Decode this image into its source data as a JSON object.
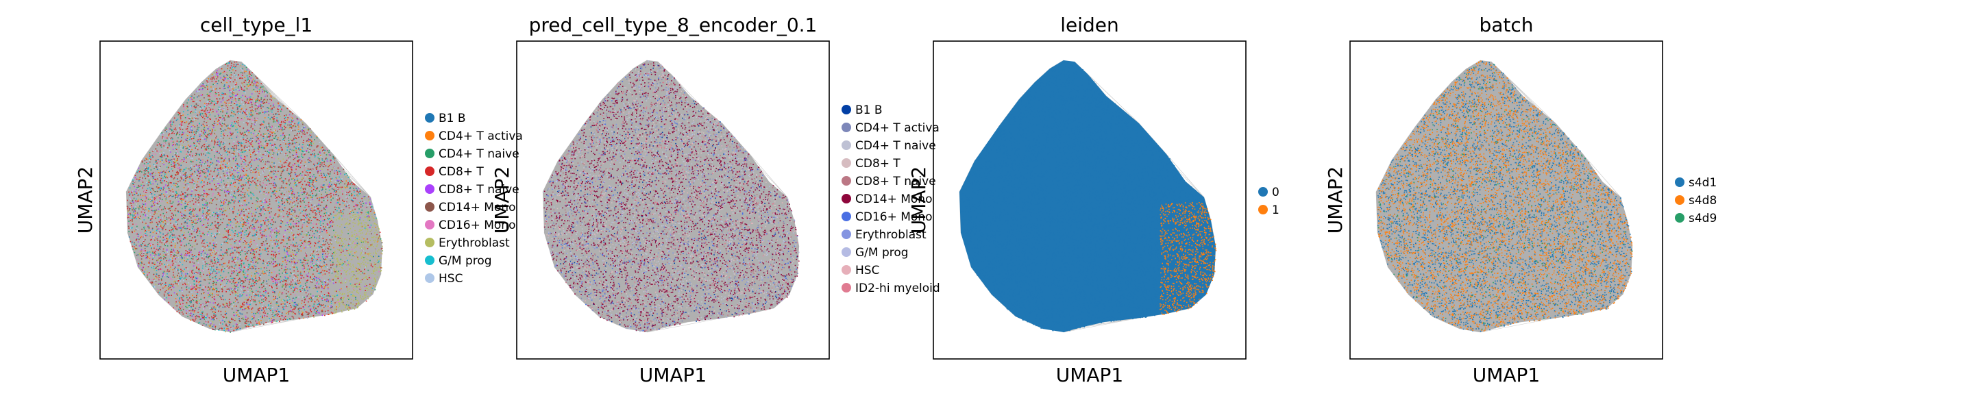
{
  "chart_data": [
    {
      "type": "scatter",
      "title": "cell_type_l1",
      "xlabel": "UMAP1",
      "ylabel": "UMAP2",
      "grid": false,
      "legend_position": "right",
      "series": [
        {
          "name": "B1 B",
          "color": "#1f77b4",
          "fraction": 0.05
        },
        {
          "name": "CD4+ T activa",
          "color": "#ff7f0e",
          "fraction": 0.06
        },
        {
          "name": "CD4+ T naive",
          "color": "#279e68",
          "fraction": 0.1
        },
        {
          "name": "CD8+ T",
          "color": "#d62728",
          "fraction": 0.3
        },
        {
          "name": "CD8+ T naive",
          "color": "#aa40fc",
          "fraction": 0.06
        },
        {
          "name": "CD14+ Mono",
          "color": "#8c564b",
          "fraction": 0.1
        },
        {
          "name": "CD16+ Mono",
          "color": "#e377c2",
          "fraction": 0.07
        },
        {
          "name": "Erythroblast",
          "color": "#b5bd61",
          "fraction": 0.08
        },
        {
          "name": "G/M prog",
          "color": "#17becf",
          "fraction": 0.09
        },
        {
          "name": "HSC",
          "color": "#aec7e8",
          "fraction": 0.09
        }
      ]
    },
    {
      "type": "scatter",
      "title": "pred_cell_type_8_encoder_0.1",
      "xlabel": "UMAP1",
      "ylabel": "UMAP2",
      "grid": false,
      "legend_position": "right",
      "series": [
        {
          "name": "B1 B",
          "color": "#023fa5",
          "fraction": 0.03
        },
        {
          "name": "CD4+ T activa",
          "color": "#7d87b9",
          "fraction": 0.06
        },
        {
          "name": "CD4+ T naive",
          "color": "#bec1d4",
          "fraction": 0.12
        },
        {
          "name": "CD8+ T",
          "color": "#d6bcc0",
          "fraction": 0.1
        },
        {
          "name": "CD8+ T naive",
          "color": "#bb7784",
          "fraction": 0.08
        },
        {
          "name": "CD14+ Mono",
          "color": "#8e063b",
          "fraction": 0.35
        },
        {
          "name": "CD16+ Mono",
          "color": "#4a6fe3",
          "fraction": 0.05
        },
        {
          "name": "Erythroblast",
          "color": "#8595e1",
          "fraction": 0.06
        },
        {
          "name": "G/M prog",
          "color": "#b5bbe3",
          "fraction": 0.07
        },
        {
          "name": "HSC",
          "color": "#e6afb9",
          "fraction": 0.04
        },
        {
          "name": "ID2-hi myeloid",
          "color": "#e07b91",
          "fraction": 0.04
        }
      ]
    },
    {
      "type": "scatter",
      "title": "leiden",
      "xlabel": "UMAP1",
      "ylabel": "UMAP2",
      "grid": false,
      "legend_position": "right",
      "series": [
        {
          "name": "0",
          "color": "#1f77b4",
          "fraction": 0.88
        },
        {
          "name": "1",
          "color": "#ff7f0e",
          "fraction": 0.12
        }
      ]
    },
    {
      "type": "scatter",
      "title": "batch",
      "xlabel": "UMAP1",
      "ylabel": "UMAP2",
      "grid": false,
      "legend_position": "right",
      "series": [
        {
          "name": "s4d1",
          "color": "#1f77b4",
          "fraction": 0.45
        },
        {
          "name": "s4d8",
          "color": "#ff7f0e",
          "fraction": 0.5
        },
        {
          "name": "s4d9",
          "color": "#279e68",
          "fraction": 0.05
        }
      ]
    }
  ]
}
